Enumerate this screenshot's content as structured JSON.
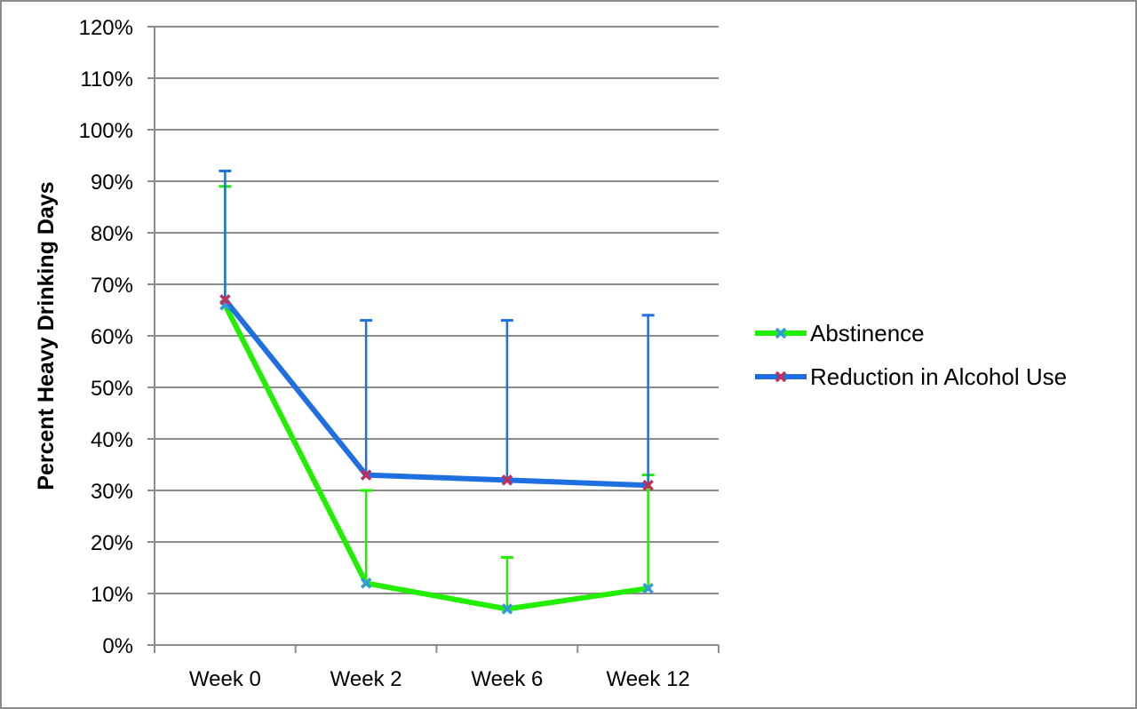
{
  "chart_data": {
    "type": "line",
    "title": "",
    "xlabel": "",
    "ylabel": "Percent Heavy Drinking Days",
    "categories": [
      "Week 0",
      "Week 2",
      "Week 6",
      "Week 12"
    ],
    "ylim": [
      0,
      120
    ],
    "yticks": [
      "0%",
      "10%",
      "20%",
      "30%",
      "40%",
      "50%",
      "60%",
      "70%",
      "80%",
      "90%",
      "100%",
      "110%",
      "120%"
    ],
    "grid": true,
    "legend_position": "right",
    "series": [
      {
        "name": "Abstinence",
        "color": "#22ee00",
        "marker_color": "#3399dd",
        "values": [
          66,
          12,
          7,
          11
        ],
        "error_upper": [
          89,
          30,
          17,
          33
        ]
      },
      {
        "name": "Reduction in Alcohol Use",
        "color": "#1f6fe0",
        "marker_color": "#c0305a",
        "values": [
          67,
          33,
          32,
          31
        ],
        "error_upper": [
          92,
          63,
          63,
          64
        ]
      }
    ]
  }
}
